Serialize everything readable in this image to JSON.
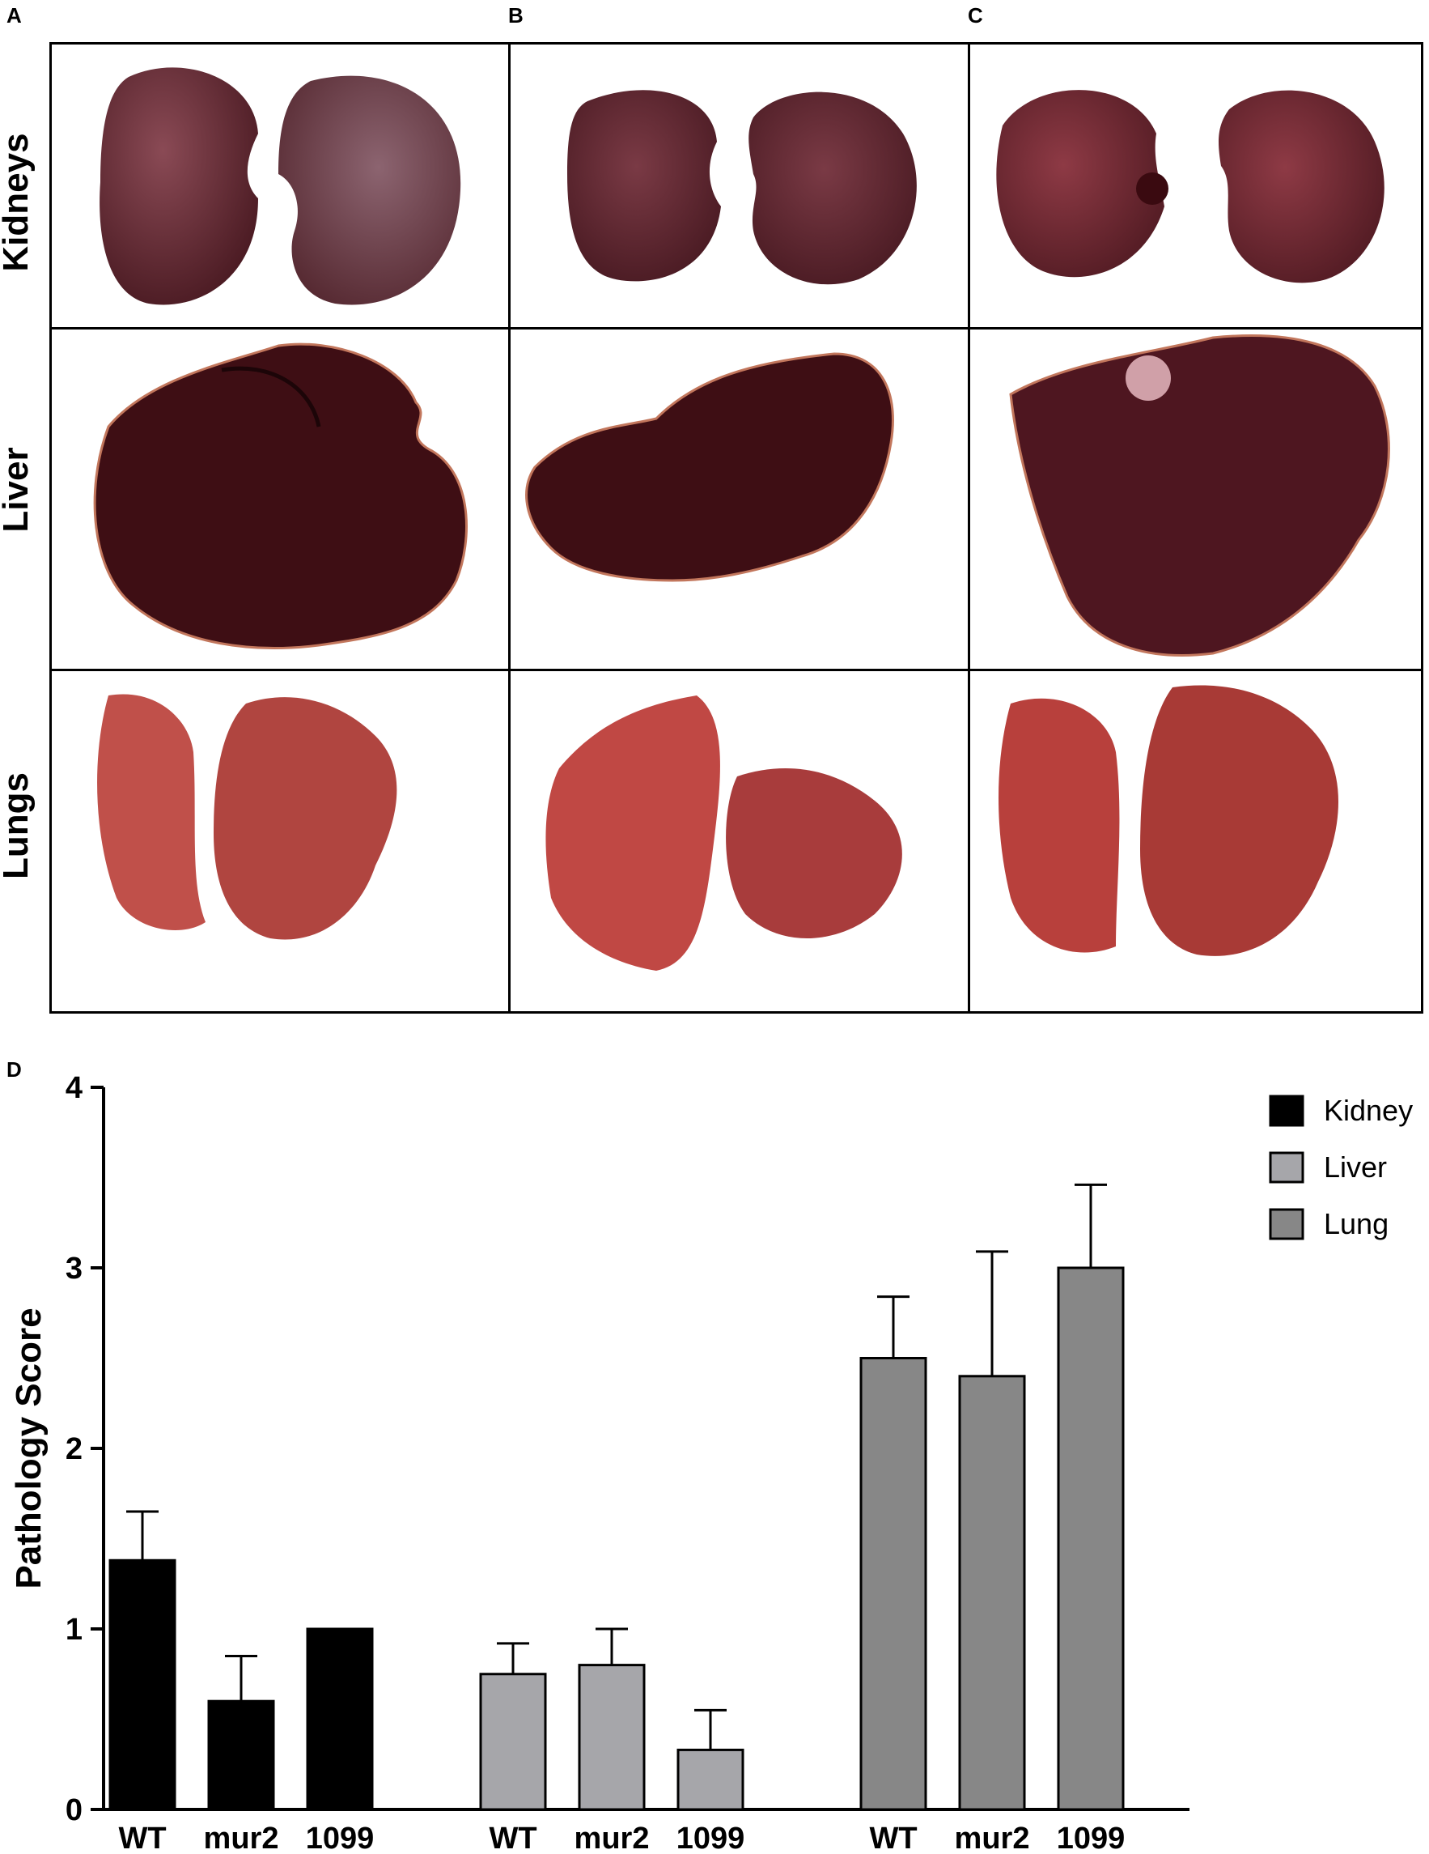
{
  "panels": {
    "a": "A",
    "b": "B",
    "c": "C",
    "d": "D"
  },
  "rows": [
    "Kidneys",
    "Liver",
    "Lungs"
  ],
  "organ_colors": {
    "kidney_dark": "#4a1a22",
    "kidney_mid": "#6b2a32",
    "liver_dark": "#3a0c12",
    "liver_mid": "#5a1a22",
    "lung_base": "#c0504a",
    "lung_dark": "#8e2a28",
    "background": "#ffffff"
  },
  "chart_data": {
    "type": "bar",
    "ylabel": "Pathology Score",
    "xlabel": "",
    "ylim": [
      0,
      4
    ],
    "yticks": [
      "0",
      "1",
      "2",
      "3",
      "4"
    ],
    "groups": [
      "WT",
      "mur2",
      "1099"
    ],
    "series": [
      {
        "name": "Kidney",
        "color": "#000000",
        "values": [
          1.38,
          0.6,
          1.0
        ],
        "errors": [
          0.27,
          0.25,
          0.0
        ],
        "labels": [
          "WT",
          "mur2",
          "1099"
        ]
      },
      {
        "name": "Liver",
        "color": "#a6a6aa",
        "values": [
          0.75,
          0.8,
          0.33
        ],
        "errors": [
          0.17,
          0.2,
          0.22
        ],
        "labels": [
          "WT",
          "mur2",
          "1099"
        ]
      },
      {
        "name": "Lung",
        "color": "#878787",
        "values": [
          2.5,
          2.4,
          3.0
        ],
        "errors": [
          0.34,
          0.69,
          0.46
        ],
        "labels": [
          "WT",
          "mur2",
          "1099"
        ]
      }
    ],
    "legend_position": "top-right"
  }
}
